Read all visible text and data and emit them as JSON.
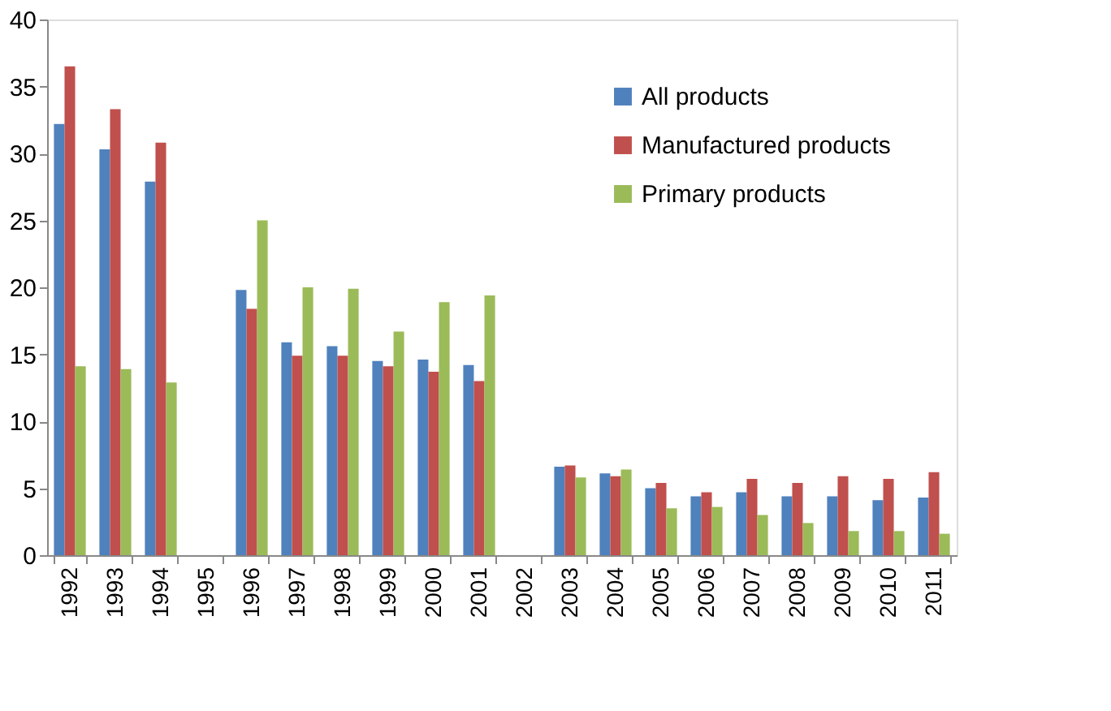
{
  "chart_data": {
    "type": "bar",
    "categories": [
      "1992",
      "1993",
      "1994",
      "1995",
      "1996",
      "1997",
      "1998",
      "1999",
      "2000",
      "2001",
      "2002",
      "2003",
      "2004",
      "2005",
      "2006",
      "2007",
      "2008",
      "2009",
      "2010",
      "2011"
    ],
    "series": [
      {
        "name": "All products",
        "color": "#4f81bd",
        "values": [
          32.2,
          30.3,
          27.9,
          null,
          19.8,
          15.9,
          15.6,
          14.5,
          14.6,
          14.2,
          null,
          6.6,
          6.1,
          5.0,
          4.4,
          4.7,
          4.4,
          4.4,
          4.1,
          4.3
        ]
      },
      {
        "name": "Manufactured products",
        "color": "#c0504d",
        "values": [
          36.5,
          33.3,
          30.8,
          null,
          18.4,
          14.9,
          14.9,
          14.1,
          13.7,
          13.0,
          null,
          6.7,
          5.9,
          5.4,
          4.7,
          5.7,
          5.4,
          5.9,
          5.7,
          6.2
        ]
      },
      {
        "name": "Primary products",
        "color": "#9bbb59",
        "values": [
          14.1,
          13.9,
          12.9,
          null,
          25.0,
          20.0,
          19.9,
          16.7,
          18.9,
          19.4,
          null,
          5.8,
          6.4,
          3.5,
          3.6,
          3.0,
          2.4,
          1.8,
          1.8,
          1.6
        ]
      }
    ],
    "ylim": [
      0,
      40
    ],
    "yticks": [
      0,
      5,
      10,
      15,
      20,
      25,
      30,
      35,
      40
    ],
    "grid": false,
    "legend": "top right"
  }
}
